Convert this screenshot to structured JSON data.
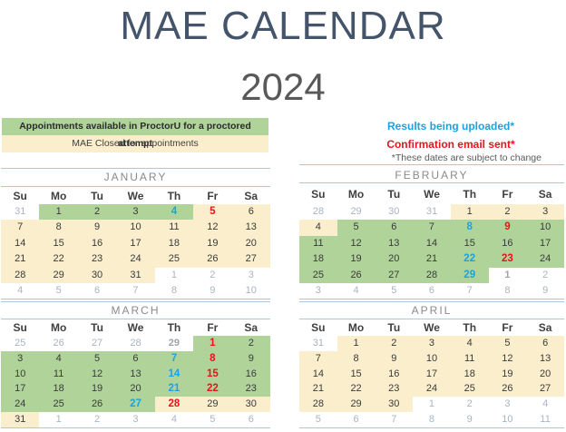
{
  "title": {
    "line1": "MAE CALENDAR",
    "line2": "2024"
  },
  "legend": {
    "available": "Appointments available in ProctorU for a proctored attempt",
    "closed": "MAE Closed for appointments",
    "results": "Results being uploaded*",
    "confirmation": "Confirmation email sent*",
    "note": "*These dates are subject to change"
  },
  "colors": {
    "accent_green": "#AFD399",
    "accent_cream": "#FAEECD",
    "results_blue": "#1BA3DE",
    "email_red": "#E8131B",
    "title_navy": "#44546A",
    "year_gray": "#595959",
    "divider_blue": "#A9C7E6",
    "muted_gray": "#A9B4C0",
    "muted_gray_bold": "#9BA3AD",
    "date_text": "#3A3A3A",
    "month_label_gray": "#8A8A8A"
  },
  "weekdays": [
    "Su",
    "Mo",
    "Tu",
    "We",
    "Th",
    "Fr",
    "Sa"
  ],
  "months": [
    {
      "name": "JANUARY",
      "rows": [
        [
          "31:n:m",
          "1:g:k",
          "2:g:k",
          "3:g:k",
          "4:g:b",
          "5:c:r",
          "6:c:k"
        ],
        [
          "7:c:k",
          "8:c:k",
          "9:c:k",
          "10:c:k",
          "11:c:k",
          "12:c:k",
          "13:c:k"
        ],
        [
          "14:c:k",
          "15:c:k",
          "16:c:k",
          "17:c:k",
          "18:c:k",
          "19:c:k",
          "20:c:k"
        ],
        [
          "21:c:k",
          "22:c:k",
          "23:c:k",
          "24:c:k",
          "25:c:k",
          "26:c:k",
          "27:c:k"
        ],
        [
          "28:c:k",
          "29:c:k",
          "30:c:k",
          "31:c:k",
          "1:n:m",
          "2:n:m",
          "3:n:m"
        ],
        [
          "4:n:m",
          "5:n:m",
          "6:n:m",
          "7:n:m",
          "8:n:m",
          "9:n:m",
          "10:n:m"
        ]
      ]
    },
    {
      "name": "FEBRUARY",
      "rows": [
        [
          "28:n:m",
          "29:n:m",
          "30:n:m",
          "31:n:m",
          "1:c:k",
          "2:c:k",
          "3:c:k"
        ],
        [
          "4:c:k",
          "5:g:k",
          "6:g:k",
          "7:g:k",
          "8:g:b",
          "9:g:r",
          "10:g:k"
        ],
        [
          "11:g:k",
          "12:g:k",
          "13:g:k",
          "14:g:k",
          "15:g:k",
          "16:g:k",
          "17:g:k"
        ],
        [
          "18:g:k",
          "19:g:k",
          "20:g:k",
          "21:g:k",
          "22:g:b",
          "23:g:r",
          "24:g:k"
        ],
        [
          "25:g:k",
          "26:g:k",
          "27:g:k",
          "28:g:k",
          "29:g:b",
          "1:n:M",
          "2:n:m"
        ],
        [
          "3:n:m",
          "4:n:m",
          "5:n:m",
          "6:n:m",
          "7:n:m",
          "8:n:m",
          "9:n:m"
        ]
      ]
    },
    {
      "name": "MARCH",
      "rows": [
        [
          "25:n:m",
          "26:n:m",
          "27:n:m",
          "28:n:m",
          "29:n:M",
          "1:g:r",
          "2:g:k"
        ],
        [
          "3:g:k",
          "4:g:k",
          "5:g:k",
          "6:g:k",
          "7:g:b",
          "8:g:r",
          "9:g:k"
        ],
        [
          "10:g:k",
          "11:g:k",
          "12:g:k",
          "13:g:k",
          "14:g:b",
          "15:g:r",
          "16:g:k"
        ],
        [
          "17:g:k",
          "18:g:k",
          "19:g:k",
          "20:g:k",
          "21:g:b",
          "22:g:r",
          "23:g:k"
        ],
        [
          "24:g:k",
          "25:g:k",
          "26:g:k",
          "27:g:b",
          "28:c:r",
          "29:c:k",
          "30:c:k"
        ],
        [
          "31:c:k",
          "1:n:m",
          "2:n:m",
          "3:n:m",
          "4:n:m",
          "5:n:m",
          "6:n:m"
        ]
      ]
    },
    {
      "name": "APRIL",
      "rows": [
        [
          "31:n:m",
          "1:c:k",
          "2:c:k",
          "3:c:k",
          "4:c:k",
          "5:c:k",
          "6:c:k"
        ],
        [
          "7:c:k",
          "8:c:k",
          "9:c:k",
          "10:c:k",
          "11:c:k",
          "12:c:k",
          "13:c:k"
        ],
        [
          "14:c:k",
          "15:c:k",
          "16:c:k",
          "17:c:k",
          "18:c:k",
          "19:c:k",
          "20:c:k"
        ],
        [
          "21:c:k",
          "22:c:k",
          "23:c:k",
          "24:c:k",
          "25:c:k",
          "26:c:k",
          "27:c:k"
        ],
        [
          "28:c:k",
          "29:c:k",
          "30:c:k",
          "1:n:m",
          "2:n:m",
          "3:n:m",
          "4:n:m"
        ],
        [
          "5:n:m",
          "6:n:m",
          "7:n:m",
          "8:n:m",
          "9:n:m",
          "10:n:m",
          "11:n:m"
        ]
      ]
    }
  ]
}
